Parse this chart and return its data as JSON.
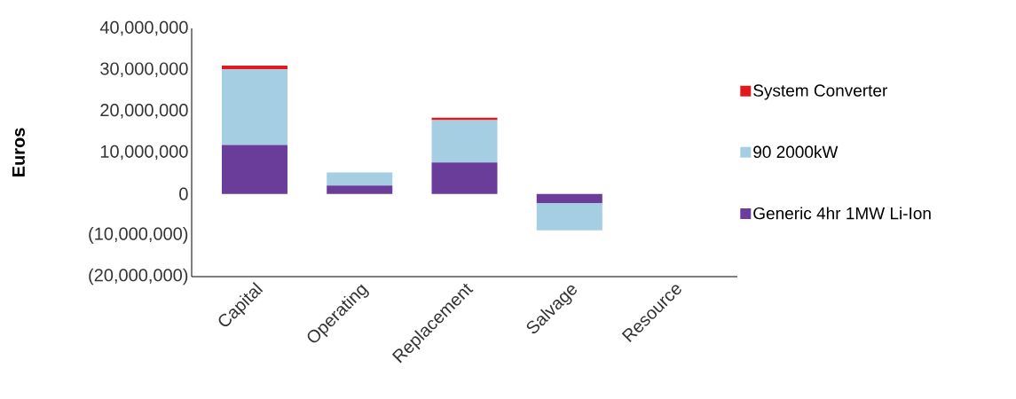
{
  "chart_data": {
    "type": "bar",
    "stacked": true,
    "ylabel": "Euros",
    "categories": [
      "Capital",
      "Operating",
      "Replacement",
      "Salvage",
      "Resource"
    ],
    "series": [
      {
        "name": "Generic 4hr 1MW Li-Ion",
        "color": "#6a3d9a",
        "values": [
          11800000,
          2000000,
          7600000,
          -2200000,
          0
        ]
      },
      {
        "name": "90 2000kW",
        "color": "#a6cee3",
        "values": [
          18300000,
          3200000,
          10200000,
          -6600000,
          0
        ]
      },
      {
        "name": "System Converter",
        "color": "#e31a1c",
        "values": [
          900000,
          0,
          600000,
          null,
          0
        ]
      }
    ],
    "ylim": [
      -20000000,
      40000000
    ],
    "yticks": [
      {
        "value": -20000000,
        "label": "(20,000,000)"
      },
      {
        "value": -10000000,
        "label": "(10,000,000)"
      },
      {
        "value": 0,
        "label": "0"
      },
      {
        "value": 10000000,
        "label": "10,000,000"
      },
      {
        "value": 20000000,
        "label": "20,000,000"
      },
      {
        "value": 30000000,
        "label": "30,000,000"
      },
      {
        "value": 40000000,
        "label": "40,000,000"
      }
    ],
    "grid": false,
    "legend": "right"
  }
}
